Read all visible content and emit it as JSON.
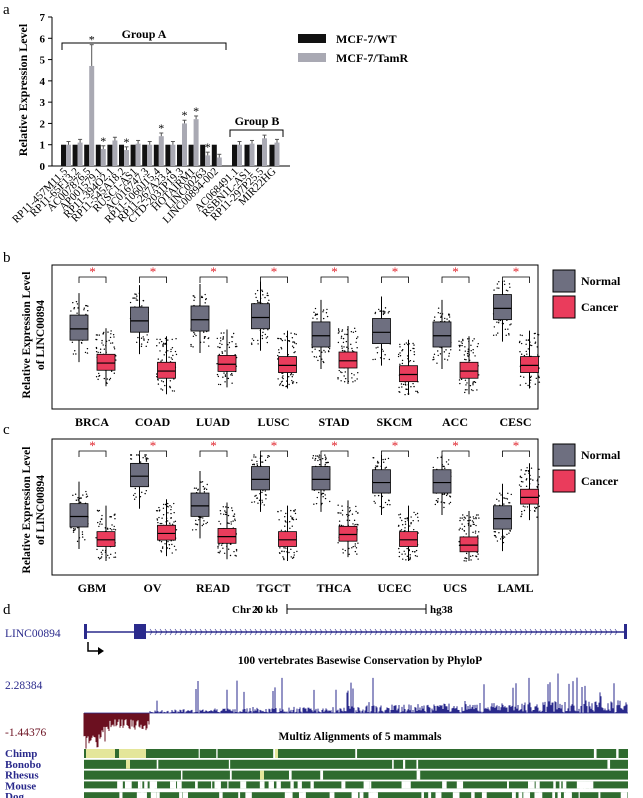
{
  "panel_labels": {
    "a": "a",
    "b": "b",
    "c": "c",
    "d": "d"
  },
  "colors": {
    "wt": "#111111",
    "tamr": "#a9a9b3",
    "normal": "#6e6f80",
    "cancer": "#ea3c5c",
    "star": "#e0242c",
    "blue": "#2a2a8c",
    "red": "#6b1020",
    "green": "#2f6b2f",
    "yellow": "#e4e69a"
  },
  "chart_data": [
    {
      "id": "a",
      "type": "bar",
      "ylabel": "Relative Expression Level",
      "ylim": [
        0,
        7
      ],
      "yticks": [
        "0",
        "1",
        "2",
        "3",
        "4",
        "5",
        "6",
        "7"
      ],
      "legend": [
        "MCF-7/WT",
        "MCF-7/TamR"
      ],
      "group_a_label": "Group A",
      "group_b_label": "Group B",
      "categories": [
        "RP11-457M11.5",
        "RP11-65F13.2",
        "AC007876.5",
        "AP001579.1",
        "RP11-394O2.1",
        "RP11-545A18.2",
        "RUSC1-AS1",
        "AC016747.3",
        "RP11-1060J15.4",
        "RP11-267A23.4",
        "CTD-2031P19.3",
        "HOTAIRM1",
        "LINC00263",
        "LINC00894-002",
        "AC068491.1",
        "RSBN1L-AS1",
        "RP11-297P25.5",
        "MIR22HG"
      ],
      "series": [
        {
          "name": "MCF-7/WT",
          "values": [
            1,
            1,
            1,
            1,
            1,
            1,
            1,
            1,
            1,
            1,
            1,
            1,
            1,
            1,
            1,
            1,
            1,
            1
          ]
        },
        {
          "name": "MCF-7/TamR",
          "values": [
            1.0,
            1.1,
            4.7,
            0.8,
            1.2,
            0.75,
            1.05,
            1.0,
            1.4,
            1.0,
            2.0,
            2.2,
            0.5,
            0.4,
            1.0,
            1.05,
            1.3,
            1.1
          ]
        }
      ],
      "significant": [
        false,
        false,
        true,
        true,
        false,
        true,
        false,
        false,
        true,
        false,
        true,
        true,
        true,
        false,
        false,
        false,
        false,
        false
      ],
      "star_label": "*"
    },
    {
      "id": "b",
      "type": "boxplot",
      "ylabel": "Relative Expression Level of LINC00894",
      "legend": [
        "Normal",
        "Cancer"
      ],
      "categories": [
        "BRCA",
        "COAD",
        "LUAD",
        "LUSC",
        "STAD",
        "SKCM",
        "ACC",
        "CESC"
      ],
      "normal_median": [
        0.58,
        0.65,
        0.66,
        0.68,
        0.52,
        0.55,
        0.52,
        0.76
      ],
      "cancer_median": [
        0.28,
        0.21,
        0.27,
        0.26,
        0.3,
        0.18,
        0.21,
        0.26
      ],
      "star_label": "*"
    },
    {
      "id": "c",
      "type": "boxplot",
      "ylabel": "Relative Expression Level of LINC00894",
      "legend": [
        "Normal",
        "Cancer"
      ],
      "categories": [
        "GBM",
        "OV",
        "READ",
        "TGCT",
        "THCA",
        "UCEC",
        "UCS",
        "LAML"
      ],
      "normal_median": [
        0.42,
        0.8,
        0.52,
        0.77,
        0.77,
        0.74,
        0.74,
        0.4
      ],
      "cancer_median": [
        0.2,
        0.26,
        0.23,
        0.2,
        0.25,
        0.2,
        0.15,
        0.6
      ],
      "star_label": "*"
    }
  ],
  "panel_d": {
    "gene_label": "LINC00894",
    "chromosome": "Chr X",
    "scale_label": "20 kb",
    "assembly": "hg38",
    "phylop_title": "100 vertebrates Basewise Conservation by PhyloP",
    "phylop_max": "2.28384",
    "phylop_min": "-1.44376",
    "multiz_title": "Multiz Alignments of 5 mammals",
    "species": [
      "Chimp",
      "Bonobo",
      "Rhesus",
      "Mouse",
      "Dog"
    ]
  }
}
